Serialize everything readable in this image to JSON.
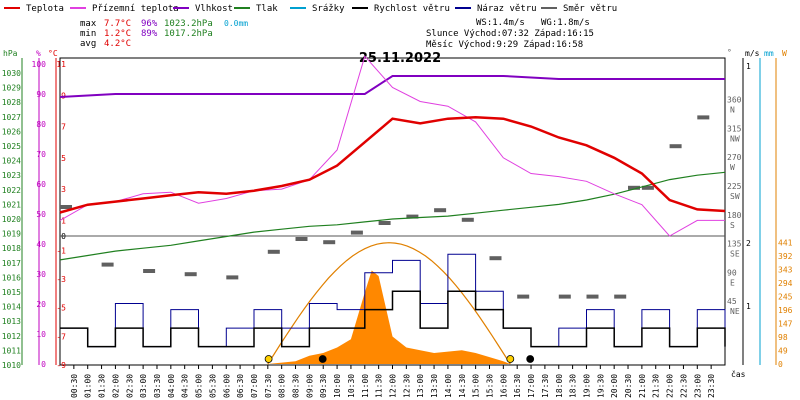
{
  "chart_data": {
    "type": "line",
    "title": "25.11.2022",
    "legend": [
      {
        "name": "Teplota",
        "color": "#e00000"
      },
      {
        "name": "Přízemní teplota",
        "color": "#e040e0"
      },
      {
        "name": "Vlhkost",
        "color": "#8000c0"
      },
      {
        "name": "Tlak",
        "color": "#208020"
      },
      {
        "name": "Srážky",
        "color": "#00a0d0"
      },
      {
        "name": "Rychlost větru",
        "color": "#000000"
      },
      {
        "name": "Náraz větru",
        "color": "#000090"
      },
      {
        "name": "Směr větru",
        "color": "#606060"
      }
    ],
    "stats": {
      "max": {
        "label": "max",
        "temp": "7.7°C",
        "hum": "96%",
        "press": "1023.2hPa",
        "rain": "0.0mm"
      },
      "min": {
        "label": "min",
        "temp": "1.2°C",
        "hum": "89%",
        "press": "1017.2hPa"
      },
      "avg": {
        "label": "avg",
        "temp": "4.2°C"
      }
    },
    "info": {
      "ws": "WS:1.4m/s",
      "wg": "WG:1.8m/s",
      "sun": "Slunce Východ:07:32  Západ:16:15",
      "moon": "Měsíc  Východ:9:29   Západ:16:58"
    },
    "units": {
      "hpa": "hPa",
      "pct": "%",
      "degc": "°C",
      "deg": "°",
      "ms": "m/s",
      "mm": "mm",
      "wm2": "W",
      "time": "čas"
    },
    "axes": {
      "pressure_ticks": [
        "1030",
        "1029",
        "1028",
        "1027",
        "1026",
        "1025",
        "1024",
        "1023",
        "1022",
        "1021",
        "1020",
        "1019",
        "1018",
        "1017",
        "1016",
        "1015",
        "1014",
        "1013",
        "1012",
        "1011",
        "1010"
      ],
      "humidity_ticks": [
        "100",
        "90",
        "80",
        "70",
        "60",
        "50",
        "40",
        "30",
        "20",
        "10",
        "0"
      ],
      "temp_upper_ticks": [
        "11",
        "9",
        "7",
        "5",
        "3",
        "1"
      ],
      "temp_lower_ticks": [
        "-1",
        "-3",
        "-5",
        "-7",
        "-9"
      ],
      "temp_zero": "0",
      "dir_ticks": [
        "360",
        "315",
        "270",
        "225",
        "180",
        "135",
        "90",
        "45"
      ],
      "dir_letters": [
        "N",
        "NW",
        "W",
        "SW",
        "S",
        "SE",
        "E",
        "NE"
      ],
      "wind_ticks": [
        "1",
        "2",
        "1"
      ],
      "solar_ticks": [
        "441",
        "392",
        "343",
        "294",
        "245",
        "196",
        "147",
        "98",
        "49",
        "0"
      ],
      "x_ticks": [
        "00:30",
        "01:00",
        "01:30",
        "02:00",
        "02:30",
        "03:00",
        "03:30",
        "04:00",
        "04:30",
        "05:00",
        "05:30",
        "06:00",
        "06:30",
        "07:00",
        "07:30",
        "08:00",
        "08:30",
        "09:00",
        "09:30",
        "10:00",
        "10:30",
        "11:00",
        "11:30",
        "12:00",
        "12:30",
        "13:00",
        "13:30",
        "14:00",
        "14:30",
        "15:00",
        "15:30",
        "16:00",
        "16:30",
        "17:00",
        "17:30",
        "18:00",
        "18:30",
        "19:00",
        "19:30",
        "20:00",
        "20:30",
        "21:00",
        "21:30",
        "22:00",
        "22:30",
        "23:00",
        "23:30"
      ]
    },
    "series": {
      "temperature": {
        "hours": [
          0,
          1,
          2,
          3,
          4,
          5,
          6,
          7,
          8,
          9,
          10,
          11,
          12,
          13,
          14,
          15,
          16,
          17,
          18,
          19,
          20,
          21,
          22,
          23,
          24
        ],
        "values": [
          1.5,
          2.0,
          2.2,
          2.4,
          2.6,
          2.8,
          2.7,
          2.9,
          3.2,
          3.6,
          4.5,
          6.0,
          7.5,
          7.2,
          7.5,
          7.6,
          7.5,
          7.0,
          6.3,
          5.8,
          5.0,
          4.0,
          2.3,
          1.7,
          1.6
        ]
      },
      "ground_temperature": {
        "hours": [
          0,
          1,
          2,
          3,
          4,
          5,
          6,
          7,
          8,
          9,
          10,
          11,
          12,
          13,
          14,
          15,
          16,
          17,
          18,
          19,
          20,
          21,
          22,
          23,
          24
        ],
        "values": [
          1.0,
          2.0,
          2.2,
          2.7,
          2.8,
          2.1,
          2.4,
          2.9,
          3.0,
          3.6,
          5.5,
          11.5,
          9.5,
          8.6,
          8.3,
          7.3,
          5.0,
          4.0,
          3.8,
          3.5,
          2.7,
          2.0,
          0.0,
          1.0,
          1.0
        ]
      },
      "humidity": {
        "hours": [
          0,
          1,
          2,
          3,
          4,
          5,
          6,
          7,
          8,
          9,
          10,
          11,
          12,
          13,
          14,
          15,
          16,
          17,
          18,
          19,
          20,
          21,
          22,
          23,
          24
        ],
        "values": [
          89,
          89.5,
          90,
          90,
          90,
          90,
          90,
          90,
          90,
          90,
          90,
          90,
          96,
          96,
          96,
          96,
          96,
          95.5,
          95,
          95,
          95,
          95,
          95,
          95,
          95
        ]
      },
      "pressure": {
        "hours": [
          0,
          1,
          2,
          3,
          4,
          5,
          6,
          7,
          8,
          9,
          10,
          11,
          12,
          13,
          14,
          15,
          16,
          17,
          18,
          19,
          20,
          21,
          22,
          23,
          24
        ],
        "values": [
          1017.2,
          1017.5,
          1017.8,
          1018.0,
          1018.2,
          1018.5,
          1018.8,
          1019.1,
          1019.3,
          1019.5,
          1019.6,
          1019.8,
          1020.0,
          1020.1,
          1020.2,
          1020.4,
          1020.6,
          1020.8,
          1021.0,
          1021.3,
          1021.7,
          1022.2,
          1022.7,
          1023.0,
          1023.2
        ]
      },
      "wind_speed": {
        "hours": [
          0,
          1,
          2,
          3,
          4,
          5,
          6,
          7,
          8,
          9,
          10,
          11,
          12,
          13,
          14,
          15,
          16,
          17,
          18,
          19,
          20,
          21,
          22,
          23,
          24
        ],
        "values": [
          0.6,
          0.3,
          0.6,
          0.3,
          0.6,
          0.3,
          0.3,
          0.6,
          0.3,
          0.6,
          0.6,
          0.9,
          1.2,
          0.6,
          1.2,
          0.9,
          0.6,
          0.3,
          0.3,
          0.6,
          0.3,
          0.6,
          0.3,
          0.6,
          0.3
        ]
      },
      "wind_gust": {
        "hours": [
          0,
          1,
          2,
          3,
          4,
          5,
          6,
          7,
          8,
          9,
          10,
          11,
          12,
          13,
          14,
          15,
          16,
          17,
          18,
          19,
          20,
          21,
          22,
          23,
          24
        ],
        "values": [
          0.6,
          0.3,
          1.0,
          0.3,
          0.9,
          0.3,
          0.6,
          0.9,
          0.6,
          1.0,
          0.9,
          1.5,
          1.7,
          1.0,
          1.8,
          1.2,
          0.6,
          0.3,
          0.6,
          0.9,
          0.3,
          0.9,
          0.3,
          0.9,
          0.3
        ]
      },
      "wind_direction": {
        "hours": [
          0,
          1.5,
          3,
          4.5,
          6,
          7.5,
          8.5,
          9.5,
          10.5,
          11.5,
          12.5,
          13.5,
          14.5,
          15.5,
          16.5,
          18,
          19,
          20,
          20.5,
          21,
          22,
          23
        ],
        "values": [
          200,
          110,
          100,
          95,
          90,
          130,
          150,
          145,
          160,
          175,
          185,
          195,
          180,
          120,
          60,
          60,
          60,
          60,
          230,
          230,
          295,
          340
        ]
      },
      "solar": {
        "hours": [
          7.5,
          8.5,
          9,
          9.5,
          10,
          10.5,
          11,
          11.25,
          11.5,
          12,
          12.5,
          13,
          13.5,
          14,
          14.5,
          15,
          15.5,
          16,
          16.25
        ],
        "values": [
          0,
          10,
          30,
          40,
          60,
          90,
          260,
          340,
          320,
          100,
          60,
          50,
          40,
          45,
          50,
          40,
          25,
          10,
          0
        ],
        "theoretical_peak": 441
      }
    }
  }
}
